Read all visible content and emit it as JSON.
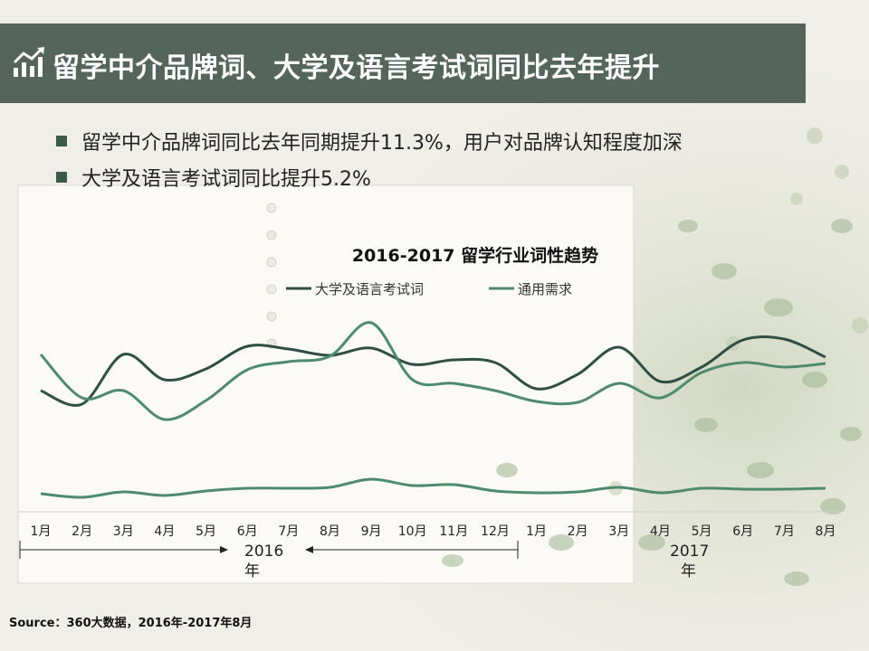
{
  "header": {
    "title": "留学中介品牌词、大学及语言考试词同比去年提升",
    "icon": "bar-chart-trend-icon"
  },
  "bullets": [
    {
      "text": "留学中介品牌词同比去年同期提升11.3%，用户对品牌认知程度加深"
    },
    {
      "text": "大学及语言考试词同比提升5.2%"
    }
  ],
  "source": "Source：360大数据，2016年-2017年8月",
  "colors": {
    "series1": "#2f4f45",
    "series2": "#4e8a6e",
    "header_bg": "#4a5a50"
  },
  "chart_data": {
    "type": "line",
    "title": "2016-2017 留学行业词性趋势",
    "categories": [
      "1月",
      "2月",
      "3月",
      "4月",
      "5月",
      "6月",
      "7月",
      "8月",
      "9月",
      "10月",
      "11月",
      "12月",
      "1月",
      "2月",
      "3月",
      "4月",
      "5月",
      "6月",
      "7月",
      "8月"
    ],
    "periods": [
      {
        "label_line1": "2016",
        "label_line2": "年"
      },
      {
        "label_line1": "2017",
        "label_line2": "年"
      }
    ],
    "series": [
      {
        "name": "大学及语言考试词",
        "values": [
          432,
          447,
          392,
          420,
          408,
          383,
          386,
          393,
          385,
          403,
          398,
          401,
          430,
          414,
          384,
          422,
          406,
          376,
          375,
          395
        ]
      },
      {
        "name": "通用需求",
        "values": [
          392,
          440,
          432,
          464,
          443,
          409,
          400,
          394,
          357,
          420,
          424,
          432,
          444,
          445,
          424,
          440,
          412,
          401,
          406,
          402
        ]
      },
      {
        "name": "",
        "values": [
          546,
          550,
          544,
          548,
          543,
          540,
          540,
          539,
          530,
          537,
          536,
          543,
          545,
          544,
          539,
          545,
          540,
          541,
          541,
          540
        ]
      }
    ],
    "ylim": [
      340,
      570
    ],
    "legend": "top-center",
    "grid": false
  }
}
